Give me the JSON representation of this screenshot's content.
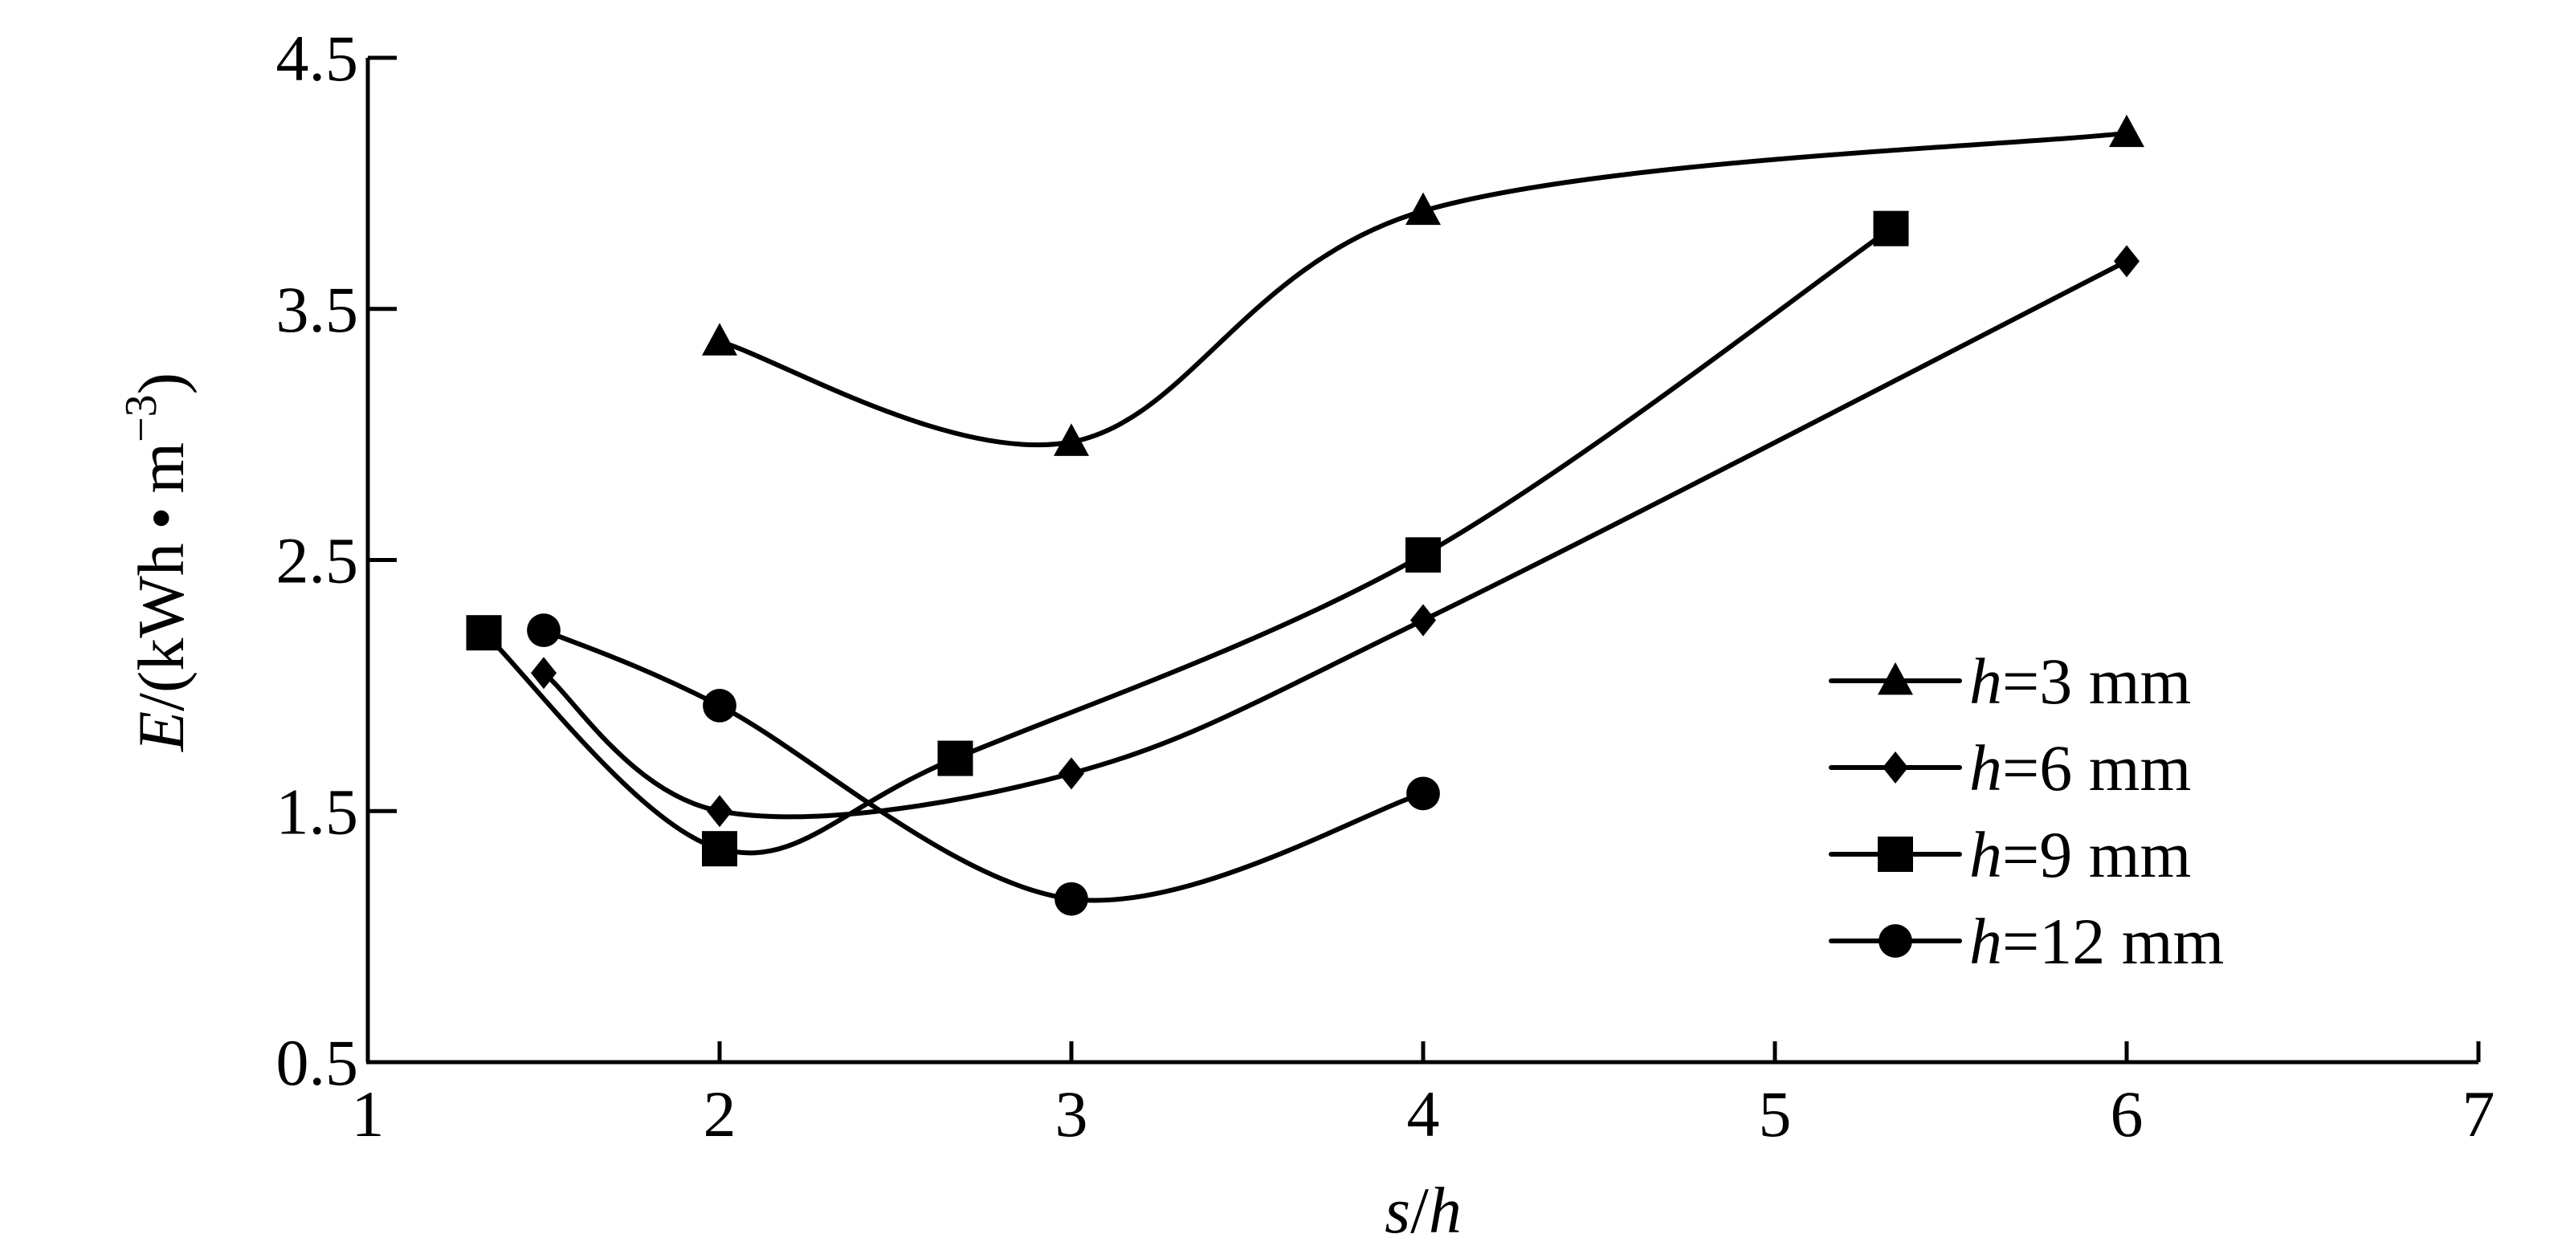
{
  "chart_data": {
    "type": "line",
    "xlabel": "s/h",
    "xlabel_parts": {
      "s": "s",
      "slash": "/",
      "h": "h"
    },
    "ylabel_parts": {
      "e": "E",
      "rest": "/(kWh • m",
      "sup": "−3",
      "close": ")"
    },
    "xlim": [
      1,
      7
    ],
    "ylim": [
      0.5,
      4.5
    ],
    "xticks": [
      1,
      2,
      3,
      4,
      5,
      6,
      7
    ],
    "xtick_labels": [
      "1",
      "2",
      "3",
      "4",
      "5",
      "6",
      "7"
    ],
    "yticks": [
      0.5,
      1.5,
      2.5,
      3.5,
      4.5
    ],
    "ytick_labels": [
      "0.5",
      "1.5",
      "2.5",
      "3.5",
      "4.5"
    ],
    "grid": false,
    "legend_position": "right",
    "series": [
      {
        "name": "h=3 mm",
        "name_parts": {
          "h": "h",
          "rest": "=3 mm"
        },
        "marker": "triangle",
        "x": [
          2,
          3,
          4,
          6
        ],
        "y": [
          3.37,
          2.97,
          3.89,
          4.2
        ]
      },
      {
        "name": "h=6 mm",
        "name_parts": {
          "h": "h",
          "rest": "=6 mm"
        },
        "marker": "diamond",
        "x": [
          1.5,
          2,
          3,
          4,
          6
        ],
        "y": [
          2.05,
          1.5,
          1.65,
          2.26,
          3.69
        ]
      },
      {
        "name": "h=9 mm",
        "name_parts": {
          "h": "h",
          "rest": "=9 mm"
        },
        "marker": "square",
        "x": [
          1.33,
          2,
          2.67,
          4,
          5.33
        ],
        "y": [
          2.21,
          1.35,
          1.71,
          2.52,
          3.82
        ]
      },
      {
        "name": "h=12 mm",
        "name_parts": {
          "h": "h",
          "rest": "=12 mm"
        },
        "marker": "circle",
        "x": [
          1.5,
          2,
          3,
          4
        ],
        "y": [
          2.22,
          1.92,
          1.15,
          1.57
        ]
      }
    ]
  }
}
